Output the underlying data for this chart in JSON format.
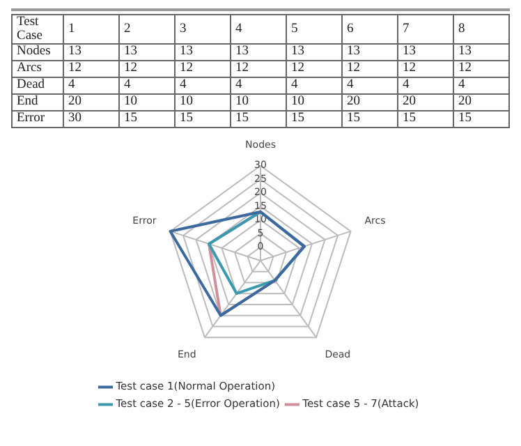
{
  "chart_data": [
    {
      "type": "heatmap",
      "xlabel": "Test Case",
      "categories": [
        "1",
        "2",
        "3",
        "4",
        "5",
        "6",
        "7",
        "8"
      ],
      "y_categories": [
        "Nodes",
        "Arcs",
        "Dead",
        "End",
        "Error"
      ],
      "cells": [
        [
          13,
          13,
          13,
          13,
          13,
          13,
          13,
          13
        ],
        [
          12,
          12,
          12,
          12,
          12,
          12,
          12,
          12
        ],
        [
          4,
          4,
          4,
          4,
          4,
          4,
          4,
          4
        ],
        [
          20,
          10,
          10,
          10,
          10,
          20,
          20,
          20
        ],
        [
          30,
          15,
          15,
          15,
          15,
          15,
          15,
          15
        ]
      ],
      "data_labels": true
    },
    {
      "type": "radar",
      "categories": [
        "Nodes",
        "Arcs",
        "Dead",
        "End",
        "Error"
      ],
      "ylim": [
        -5,
        30
      ],
      "yticks": [
        0,
        5,
        10,
        15,
        20,
        25,
        30
      ],
      "grid": true,
      "legend": "bottom",
      "marker": "none",
      "series": [
        {
          "name": "Test case 1(Normal Operation)",
          "color": "#3c6a9e",
          "values": [
            13,
            12,
            4,
            20,
            30
          ]
        },
        {
          "name": "Test case 2 - 5(Error Operation)",
          "color": "#3b9ab0",
          "values": [
            13,
            12,
            4,
            10,
            15
          ]
        },
        {
          "name": "Test case 5 - 7(Attack)",
          "color": "#d08f9a",
          "values": [
            13,
            12,
            4,
            20,
            15
          ]
        }
      ]
    }
  ]
}
